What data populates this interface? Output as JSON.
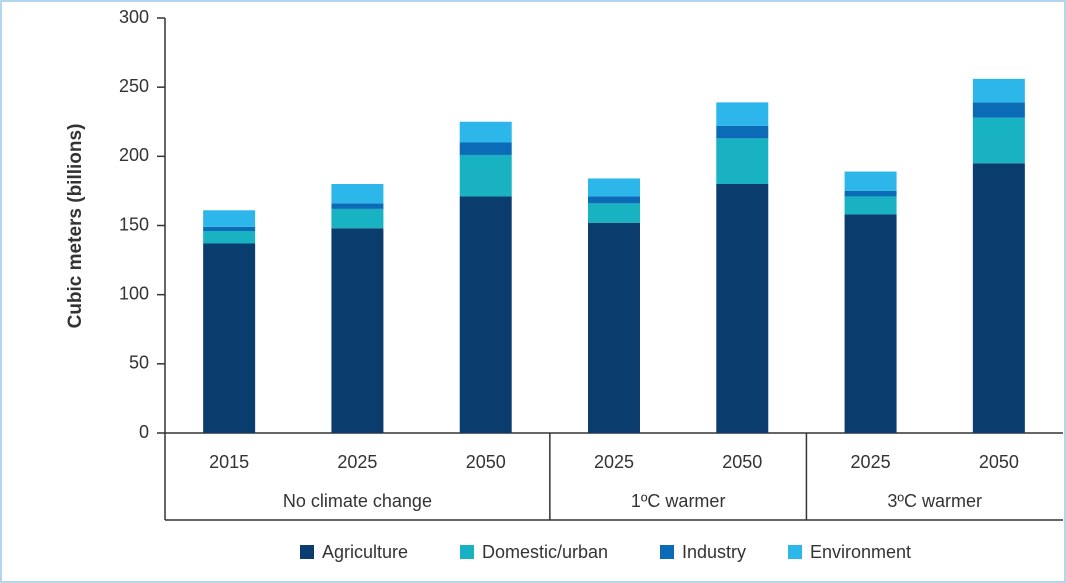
{
  "chart_data": {
    "type": "stacked-bar",
    "y_label": "Cubic meters (billions)",
    "groups": [
      {
        "name": "No climate change",
        "categories": [
          "2015",
          "2025",
          "2050"
        ]
      },
      {
        "name": "1ºC warmer",
        "categories": [
          "2025",
          "2050"
        ]
      },
      {
        "name": "3ºC warmer",
        "categories": [
          "2025",
          "2050"
        ]
      }
    ],
    "series": [
      {
        "name": "Agriculture",
        "color": "#0b3c6e",
        "values": [
          137,
          148,
          171,
          152,
          180,
          158,
          195
        ]
      },
      {
        "name": "Domestic/urban",
        "color": "#19b2c3",
        "values": [
          9,
          14,
          30,
          14,
          33,
          13,
          33
        ]
      },
      {
        "name": "Industry",
        "color": "#0b6bb7",
        "values": [
          3,
          4,
          9,
          5,
          9,
          4,
          11
        ]
      },
      {
        "name": "Environment",
        "color": "#2db6e9",
        "values": [
          12,
          14,
          15,
          13,
          17,
          14,
          17
        ]
      }
    ],
    "ylim": [
      0,
      300
    ],
    "yticks": [
      0,
      50,
      100,
      150,
      200,
      250,
      300
    ]
  }
}
